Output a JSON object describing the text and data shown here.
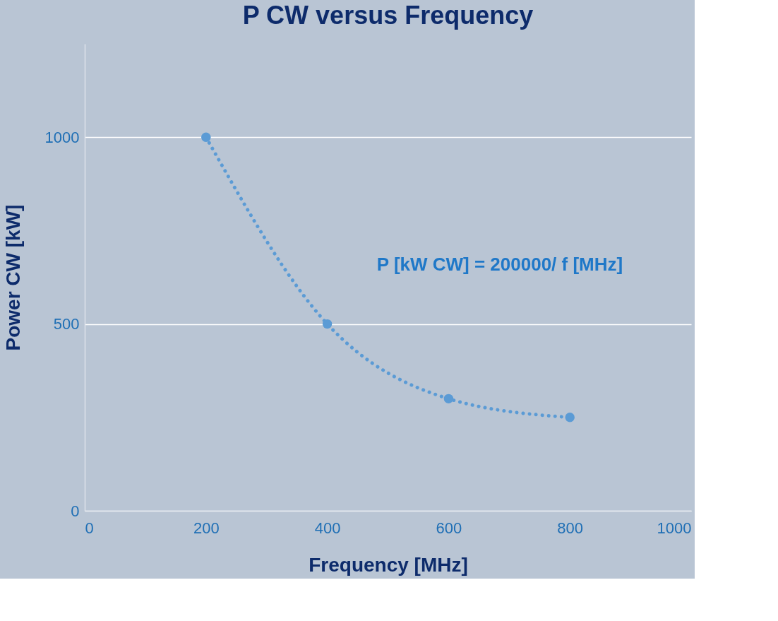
{
  "chart_data": {
    "type": "line",
    "title": "P CW versus Frequency",
    "xlabel": "Frequency [MHz]",
    "ylabel": "Power CW [kW]",
    "x": [
      200,
      400,
      600,
      800
    ],
    "series": [
      {
        "color": "#5b9bd5",
        "values": [
          1000,
          500,
          300,
          250
        ]
      }
    ],
    "marker": "circle",
    "line_style": "dotted",
    "xlim": [
      0,
      1000
    ],
    "xticks": [
      0,
      200,
      400,
      600,
      800,
      1000
    ],
    "ylim": [
      0,
      1250
    ],
    "yticks": [
      0,
      500,
      1000
    ],
    "grid": "y",
    "annotations": [
      "P [kW CW] = 200000/ f [MHz]"
    ]
  }
}
